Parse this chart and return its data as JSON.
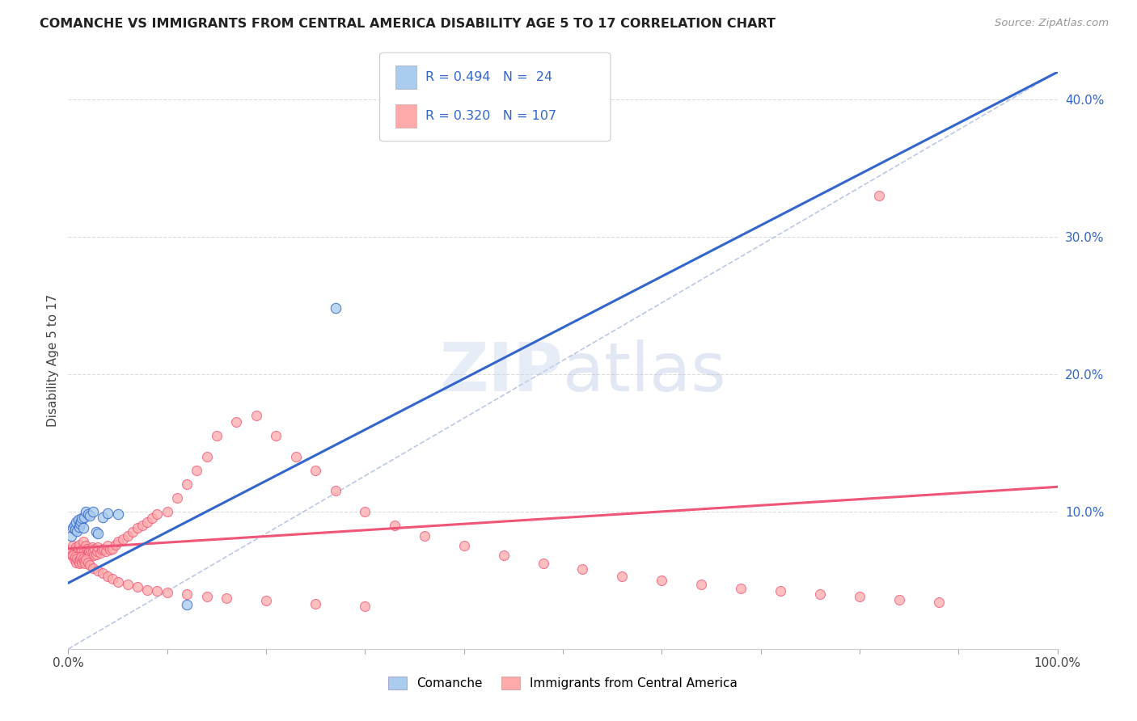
{
  "title": "COMANCHE VS IMMIGRANTS FROM CENTRAL AMERICA DISABILITY AGE 5 TO 17 CORRELATION CHART",
  "source": "Source: ZipAtlas.com",
  "ylabel": "Disability Age 5 to 17",
  "xlim": [
    0,
    1.0
  ],
  "ylim": [
    0,
    0.42
  ],
  "xtick_positions": [
    0.0,
    0.1,
    0.2,
    0.3,
    0.4,
    0.5,
    0.6,
    0.7,
    0.8,
    0.9,
    1.0
  ],
  "xticklabels": [
    "0.0%",
    "",
    "",
    "",
    "",
    "",
    "",
    "",
    "",
    "",
    "100.0%"
  ],
  "ytick_positions": [
    0.0,
    0.1,
    0.2,
    0.3,
    0.4
  ],
  "ytick_labels": [
    "",
    "10.0%",
    "20.0%",
    "30.0%",
    "40.0%"
  ],
  "grid_color": "#cccccc",
  "background_color": "#ffffff",
  "blue_dot_color": "#aaccee",
  "pink_dot_color": "#ffaaaa",
  "blue_line_color": "#3366cc",
  "pink_line_color": "#ee5577",
  "ref_line_color": "#aabbdd",
  "right_axis_color": "#3366cc",
  "title_color": "#222222",
  "source_color": "#999999",
  "ylabel_color": "#444444",
  "watermark_color": "#ccd9e8",
  "label_blue": "Comanche",
  "label_pink": "Immigrants from Central America",
  "legend_text_color": "#3366cc",
  "legend_box_color": "#eeeeee",
  "blue_line_x": [
    0.0,
    1.0
  ],
  "blue_line_y": [
    0.048,
    0.42
  ],
  "pink_line_x": [
    0.0,
    1.0
  ],
  "pink_line_y": [
    0.073,
    0.118
  ],
  "ref_line_x": [
    0.0,
    1.0
  ],
  "ref_line_y": [
    0.0,
    0.42
  ],
  "comanche_x": [
    0.003,
    0.005,
    0.006,
    0.007,
    0.008,
    0.009,
    0.01,
    0.011,
    0.012,
    0.013,
    0.014,
    0.015,
    0.016,
    0.018,
    0.02,
    0.022,
    0.025,
    0.028,
    0.03,
    0.035,
    0.04,
    0.05,
    0.27,
    0.12
  ],
  "comanche_y": [
    0.082,
    0.088,
    0.09,
    0.087,
    0.092,
    0.086,
    0.094,
    0.089,
    0.091,
    0.093,
    0.095,
    0.088,
    0.096,
    0.1,
    0.098,
    0.097,
    0.1,
    0.085,
    0.084,
    0.096,
    0.099,
    0.098,
    0.248,
    0.032
  ],
  "immigrants_x": [
    0.003,
    0.004,
    0.005,
    0.006,
    0.007,
    0.008,
    0.009,
    0.01,
    0.011,
    0.012,
    0.013,
    0.014,
    0.015,
    0.016,
    0.017,
    0.018,
    0.019,
    0.02,
    0.021,
    0.022,
    0.023,
    0.024,
    0.025,
    0.026,
    0.027,
    0.028,
    0.029,
    0.03,
    0.032,
    0.034,
    0.036,
    0.038,
    0.04,
    0.042,
    0.045,
    0.048,
    0.05,
    0.055,
    0.06,
    0.065,
    0.07,
    0.075,
    0.08,
    0.085,
    0.09,
    0.1,
    0.11,
    0.12,
    0.13,
    0.14,
    0.15,
    0.17,
    0.19,
    0.21,
    0.23,
    0.25,
    0.27,
    0.3,
    0.33,
    0.36,
    0.4,
    0.44,
    0.48,
    0.52,
    0.56,
    0.6,
    0.64,
    0.68,
    0.72,
    0.76,
    0.8,
    0.84,
    0.88,
    0.82,
    0.005,
    0.006,
    0.007,
    0.008,
    0.009,
    0.01,
    0.011,
    0.012,
    0.013,
    0.014,
    0.015,
    0.016,
    0.017,
    0.018,
    0.02,
    0.022,
    0.025,
    0.03,
    0.035,
    0.04,
    0.045,
    0.05,
    0.06,
    0.07,
    0.08,
    0.09,
    0.1,
    0.12,
    0.14,
    0.16,
    0.2,
    0.25,
    0.3
  ],
  "immigrants_y": [
    0.072,
    0.068,
    0.075,
    0.071,
    0.069,
    0.074,
    0.07,
    0.073,
    0.076,
    0.07,
    0.068,
    0.072,
    0.078,
    0.071,
    0.069,
    0.075,
    0.073,
    0.07,
    0.071,
    0.069,
    0.072,
    0.074,
    0.071,
    0.068,
    0.073,
    0.069,
    0.071,
    0.074,
    0.07,
    0.072,
    0.073,
    0.071,
    0.075,
    0.072,
    0.073,
    0.076,
    0.078,
    0.08,
    0.082,
    0.085,
    0.088,
    0.09,
    0.092,
    0.095,
    0.098,
    0.1,
    0.11,
    0.12,
    0.13,
    0.14,
    0.155,
    0.165,
    0.17,
    0.155,
    0.14,
    0.13,
    0.115,
    0.1,
    0.09,
    0.082,
    0.075,
    0.068,
    0.062,
    0.058,
    0.053,
    0.05,
    0.047,
    0.044,
    0.042,
    0.04,
    0.038,
    0.036,
    0.034,
    0.33,
    0.068,
    0.065,
    0.067,
    0.063,
    0.066,
    0.064,
    0.062,
    0.065,
    0.067,
    0.063,
    0.066,
    0.064,
    0.062,
    0.065,
    0.063,
    0.061,
    0.059,
    0.057,
    0.055,
    0.053,
    0.051,
    0.049,
    0.047,
    0.045,
    0.043,
    0.042,
    0.041,
    0.04,
    0.038,
    0.037,
    0.035,
    0.033,
    0.031
  ]
}
